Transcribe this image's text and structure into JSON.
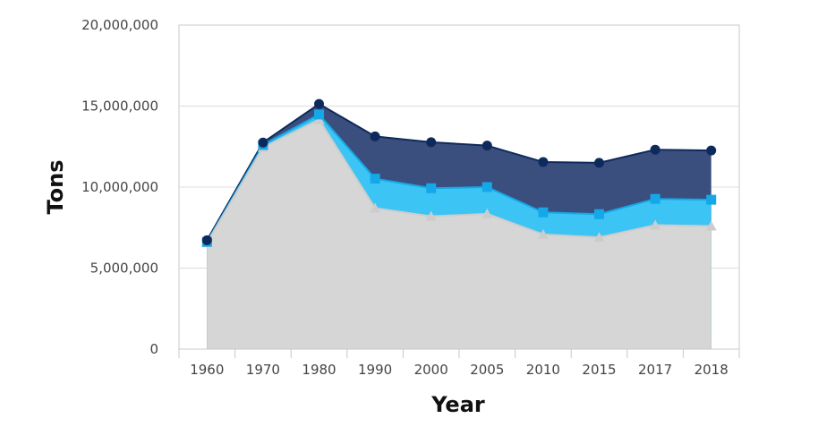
{
  "chart_data": {
    "type": "area",
    "xlabel": "Year",
    "ylabel": "Tons",
    "categories": [
      "1960",
      "1970",
      "1980",
      "1990",
      "2000",
      "2005",
      "2010",
      "2015",
      "2017",
      "2018"
    ],
    "ylim": [
      0,
      20000000
    ],
    "yticks": [
      {
        "value": 0,
        "label": "0"
      },
      {
        "value": 5000000,
        "label": "5,000,000"
      },
      {
        "value": 10000000,
        "label": "10,000,000"
      },
      {
        "value": 15000000,
        "label": "15,000,000"
      },
      {
        "value": 20000000,
        "label": "20,000,000"
      }
    ],
    "grid": true,
    "legend": "none",
    "series": [
      {
        "marker": "circle",
        "color": "#0e2a5c",
        "fill": "#3a4f7e",
        "values": [
          6720000,
          12750000,
          15130000,
          13130000,
          12770000,
          12560000,
          11550000,
          11500000,
          12310000,
          12260000
        ]
      },
      {
        "marker": "square",
        "color": "#15a8e8",
        "fill": "#3cc4f4",
        "values": [
          6620000,
          12600000,
          14480000,
          10520000,
          9930000,
          10000000,
          8440000,
          8330000,
          9270000,
          9220000
        ]
      },
      {
        "marker": "triangle",
        "color": "#cccccc",
        "fill": "#d6d6d6",
        "values": [
          6570000,
          12450000,
          14170000,
          8700000,
          8200000,
          8350000,
          7080000,
          6900000,
          7650000,
          7600000
        ]
      }
    ]
  }
}
